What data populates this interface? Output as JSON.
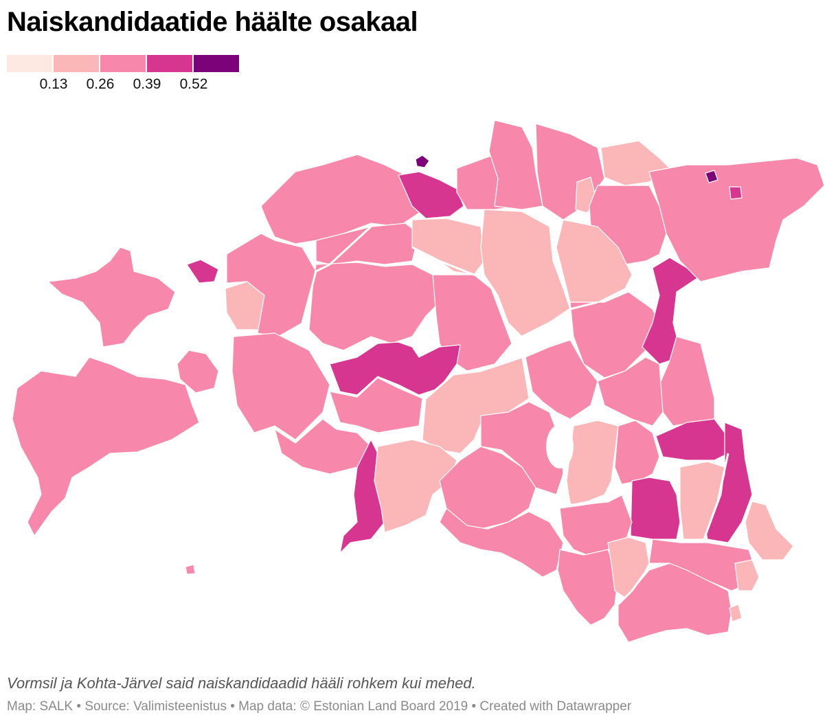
{
  "title": "Naiskandidaatide häälte osakaal",
  "legend": {
    "colors": [
      "#fde9e2",
      "#fbb7b8",
      "#f788ab",
      "#d6368f",
      "#7b0278"
    ],
    "ticks": [
      "0.13",
      "0.26",
      "0.39",
      "0.52"
    ]
  },
  "notes": "Vormsil ja Kohta-Järvel said naiskandidaadid hääli rohkem kui mehed.",
  "credits": "Map: SALK • Source: Valimisteenistus • Map data: © Estonian Land Board 2019 • Created with Datawrapper"
}
